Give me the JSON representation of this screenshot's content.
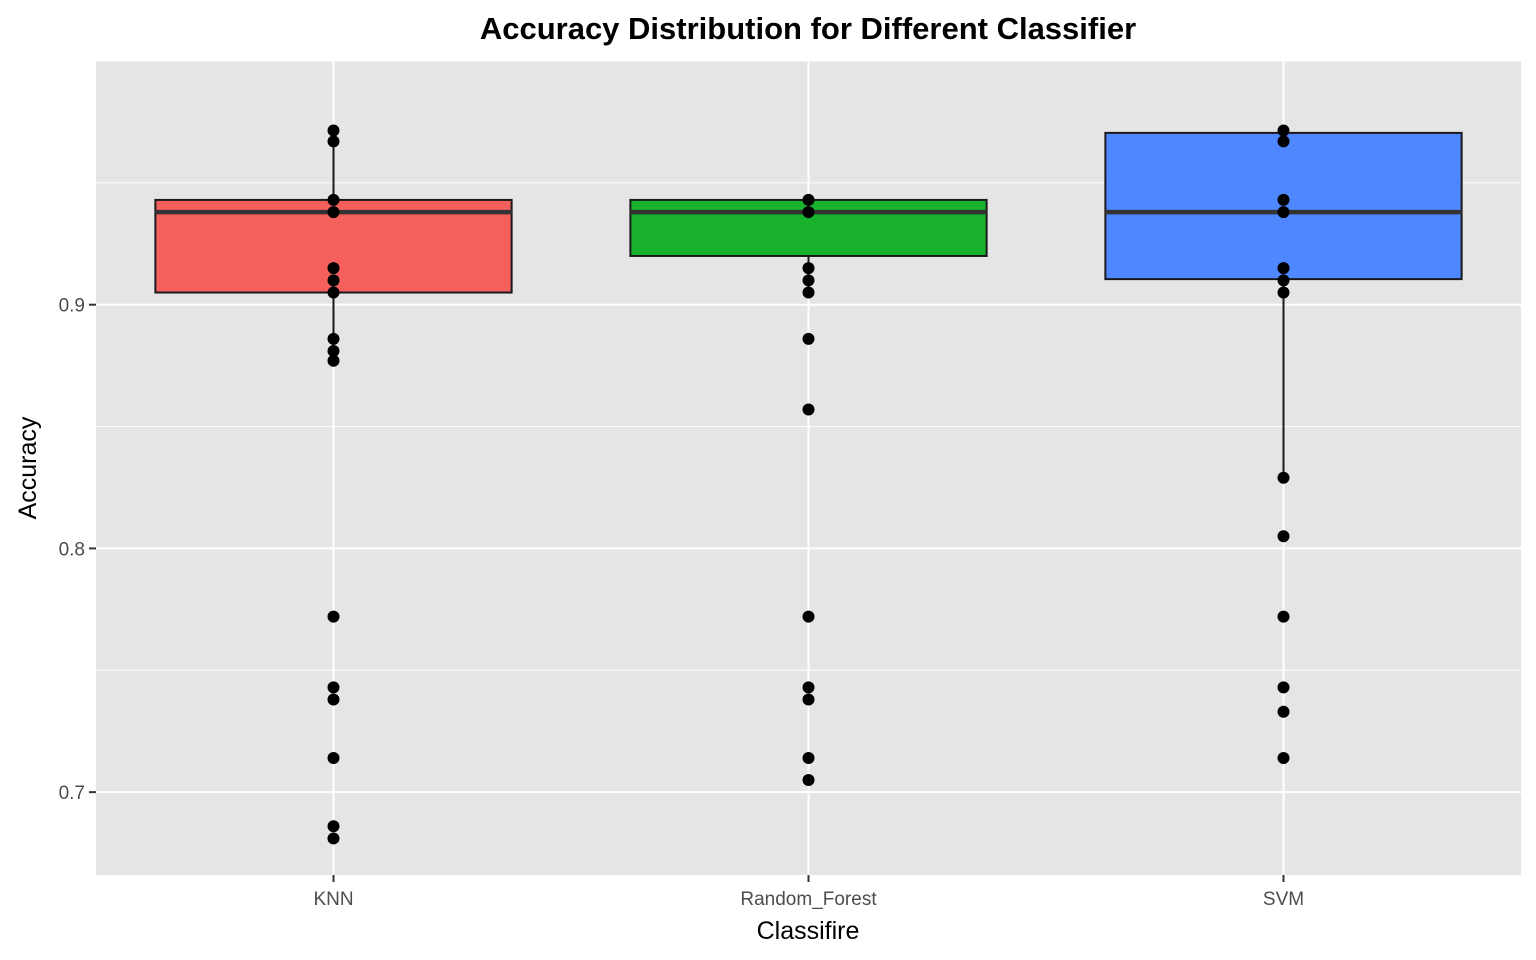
{
  "chart_data": {
    "type": "boxplot",
    "title": "Accuracy Distribution for Different Classifier",
    "xlabel": "Classifire",
    "ylabel": "Accuracy",
    "categories": [
      "KNN",
      "Random_Forest",
      "SVM"
    ],
    "ylim": [
      0.666,
      1.0
    ],
    "yticks": [
      0.7,
      0.8,
      0.9
    ],
    "ytick_labels": [
      "0.7",
      "0.8",
      "0.9"
    ],
    "grid": true,
    "legend": "none",
    "colors": {
      "panel": "#e5e5e5",
      "grid": "#ffffff",
      "KNN": "#f5605c",
      "Random_Forest": "#19b22d",
      "SVM": "#4f87ff",
      "points": "#000000",
      "box_line": "#1a1a1a"
    },
    "boxes": [
      {
        "category": "KNN",
        "q1": 0.905,
        "median": 0.938,
        "q3": 0.943,
        "whisker_low": 0.877,
        "whisker_high": 0.9715
      },
      {
        "category": "Random_Forest",
        "q1": 0.92,
        "median": 0.938,
        "q3": 0.943,
        "whisker_low": 0.905,
        "whisker_high": 0.943
      },
      {
        "category": "SVM",
        "q1": 0.9105,
        "median": 0.938,
        "q3": 0.9705,
        "whisker_low": 0.829,
        "whisker_high": 0.9715
      }
    ],
    "points": {
      "KNN": [
        0.9715,
        0.967,
        0.943,
        0.938,
        0.915,
        0.91,
        0.905,
        0.886,
        0.881,
        0.877,
        0.772,
        0.743,
        0.738,
        0.714,
        0.686,
        0.681
      ],
      "Random_Forest": [
        0.943,
        0.938,
        0.915,
        0.91,
        0.905,
        0.886,
        0.857,
        0.772,
        0.743,
        0.738,
        0.714,
        0.705
      ],
      "SVM": [
        0.9715,
        0.967,
        0.943,
        0.938,
        0.915,
        0.91,
        0.905,
        0.829,
        0.805,
        0.772,
        0.743,
        0.733,
        0.714
      ]
    }
  }
}
